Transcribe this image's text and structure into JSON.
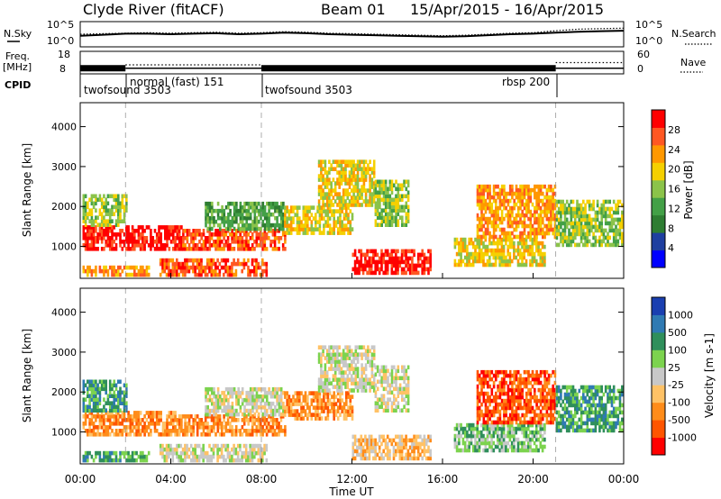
{
  "header": {
    "station": "Clyde River (fitACF)",
    "beam": "Beam 01",
    "date_range": "15/Apr/2015 - 16/Apr/2015"
  },
  "chart_data": [
    {
      "panel": "noise",
      "type": "line",
      "left_label": "N.Sky",
      "right_label": "N.Search",
      "left_ticks": [
        "10^5",
        "10^0"
      ],
      "right_ticks": [
        "10^5",
        "10^0"
      ],
      "series": [
        {
          "name": "N.Sky",
          "style": "solid",
          "values": [
            2.2,
            2.4,
            2.6,
            2.6,
            2.5,
            2.6,
            2.7,
            2.5,
            2.6,
            2.8,
            2.7,
            2.5,
            2.4,
            2.3,
            2.2,
            2.1,
            2.0,
            2.1,
            2.3,
            2.5,
            2.6,
            2.8,
            3.0,
            3.1,
            3.2
          ]
        },
        {
          "name": "N.Search",
          "style": "dotted",
          "values": [
            2.5,
            2.6,
            2.7,
            2.8,
            2.7,
            2.8,
            2.9,
            2.7,
            2.8,
            3.0,
            2.9,
            2.7,
            2.6,
            2.5,
            2.4,
            2.3,
            2.2,
            2.3,
            2.5,
            2.7,
            2.8,
            3.2,
            3.5,
            3.6,
            3.7
          ]
        }
      ]
    },
    {
      "panel": "frequency",
      "type": "line",
      "left_label_1": "Freq.",
      "left_label_2": "[MHz]",
      "right_label": "Nave",
      "left_ticks": [
        "18",
        "8"
      ],
      "right_ticks": [
        "60",
        "0"
      ],
      "segments": [
        {
          "start_h": 0.0,
          "end_h": 2.0,
          "freq_mhz": 10.5,
          "nave": 10,
          "style": "dense"
        },
        {
          "start_h": 2.0,
          "end_h": 8.0,
          "freq_mhz": 10.5,
          "nave": 24,
          "style": "sparse"
        },
        {
          "start_h": 8.0,
          "end_h": 21.0,
          "freq_mhz": 10.5,
          "nave": 10,
          "style": "dense"
        },
        {
          "start_h": 21.0,
          "end_h": 24.0,
          "freq_mhz": 10.5,
          "nave": 30,
          "style": "sparse"
        }
      ]
    },
    {
      "panel": "cpid",
      "label": "CPID",
      "modes": [
        {
          "name": "twofsound 3503",
          "start_h": 0.0,
          "end_h": 2.0
        },
        {
          "name": "normal (fast) 151",
          "start_h": 2.0,
          "end_h": 8.0
        },
        {
          "name": "twofsound 3503",
          "start_h": 8.0,
          "end_h": 21.0
        },
        {
          "name": "rbsp 200",
          "start_h": 21.0,
          "end_h": 24.0
        }
      ]
    },
    {
      "panel": "power",
      "type": "heatmap",
      "ylabel": "Slant Range [km]",
      "yticks": [
        1000,
        2000,
        3000,
        4000
      ],
      "ylim": [
        200,
        4600
      ],
      "xlim": [
        0,
        24
      ],
      "colorbar": {
        "label": "Power [dB]",
        "ticks": [
          "4",
          "8",
          "12",
          "16",
          "20",
          "24",
          "28"
        ],
        "colors": [
          "#0000ff",
          "#1f3fa0",
          "#2e7d32",
          "#43a047",
          "#8bc34a",
          "#f5d000",
          "#ff9800",
          "#ff5722",
          "#ff0000"
        ]
      },
      "echo_regions": [
        {
          "t0": 0.1,
          "t1": 4.5,
          "r0": 900,
          "r1": 1500,
          "level": 8
        },
        {
          "t0": 0.1,
          "t1": 2.0,
          "r0": 1500,
          "r1": 2300,
          "level": 4
        },
        {
          "t0": 0.1,
          "t1": 3.0,
          "r0": 250,
          "r1": 500,
          "level": 6
        },
        {
          "t0": 3.5,
          "t1": 8.2,
          "r0": 250,
          "r1": 700,
          "level": 7
        },
        {
          "t0": 4.5,
          "t1": 9.0,
          "r0": 900,
          "r1": 1400,
          "level": 7
        },
        {
          "t0": 5.5,
          "t1": 9.0,
          "r0": 1400,
          "r1": 2100,
          "level": 3
        },
        {
          "t0": 9.0,
          "t1": 12.0,
          "r0": 1300,
          "r1": 2000,
          "level": 5
        },
        {
          "t0": 10.5,
          "t1": 13.0,
          "r0": 2000,
          "r1": 3100,
          "level": 5
        },
        {
          "t0": 12.0,
          "t1": 15.5,
          "r0": 300,
          "r1": 900,
          "level": 8
        },
        {
          "t0": 13.0,
          "t1": 14.5,
          "r0": 1500,
          "r1": 2600,
          "level": 4
        },
        {
          "t0": 16.5,
          "t1": 20.5,
          "r0": 500,
          "r1": 1200,
          "level": 5
        },
        {
          "t0": 17.5,
          "t1": 21.0,
          "r0": 1200,
          "r1": 2500,
          "level": 6
        },
        {
          "t0": 21.0,
          "t1": 23.9,
          "r0": 1000,
          "r1": 2100,
          "level": 4
        }
      ]
    },
    {
      "panel": "velocity",
      "type": "heatmap",
      "xlabel": "Time UT",
      "ylabel": "Slant Range [km]",
      "yticks": [
        1000,
        2000,
        3000,
        4000
      ],
      "ylim": [
        200,
        4600
      ],
      "xlim": [
        0,
        24
      ],
      "xticks": [
        "00:00",
        "04:00",
        "08:00",
        "12:00",
        "16:00",
        "20:00",
        "00:00"
      ],
      "colorbar": {
        "label": "Velocity [m s-1]",
        "ticks": [
          "-1000",
          "-500",
          "-100",
          "-25",
          "25",
          "100",
          "500",
          "1000"
        ],
        "colors": [
          "#ff0000",
          "#ff5500",
          "#ff8c1a",
          "#ffc266",
          "#c8c8c8",
          "#7cd34e",
          "#2f8f5b",
          "#2f7ab3",
          "#1a3fb0"
        ]
      },
      "echo_regions": [
        {
          "t0": 0.1,
          "t1": 4.5,
          "r0": 900,
          "r1": 1500,
          "level": 2
        },
        {
          "t0": 0.1,
          "t1": 2.0,
          "r0": 1500,
          "r1": 2300,
          "level": 6
        },
        {
          "t0": 0.1,
          "t1": 3.0,
          "r0": 250,
          "r1": 500,
          "level": 6
        },
        {
          "t0": 3.5,
          "t1": 8.2,
          "r0": 250,
          "r1": 700,
          "level": 4
        },
        {
          "t0": 4.5,
          "t1": 9.0,
          "r0": 900,
          "r1": 1400,
          "level": 2
        },
        {
          "t0": 5.5,
          "t1": 9.0,
          "r0": 1400,
          "r1": 2100,
          "level": 4
        },
        {
          "t0": 9.0,
          "t1": 12.0,
          "r0": 1300,
          "r1": 2000,
          "level": 2
        },
        {
          "t0": 10.5,
          "t1": 13.0,
          "r0": 2000,
          "r1": 3100,
          "level": 4
        },
        {
          "t0": 12.0,
          "t1": 15.5,
          "r0": 300,
          "r1": 900,
          "level": 3
        },
        {
          "t0": 13.0,
          "t1": 14.5,
          "r0": 1500,
          "r1": 2600,
          "level": 4
        },
        {
          "t0": 16.5,
          "t1": 20.5,
          "r0": 500,
          "r1": 1200,
          "level": 5
        },
        {
          "t0": 17.5,
          "t1": 21.0,
          "r0": 1200,
          "r1": 2500,
          "level": 1
        },
        {
          "t0": 21.0,
          "t1": 23.9,
          "r0": 1000,
          "r1": 2100,
          "level": 6
        }
      ]
    }
  ]
}
